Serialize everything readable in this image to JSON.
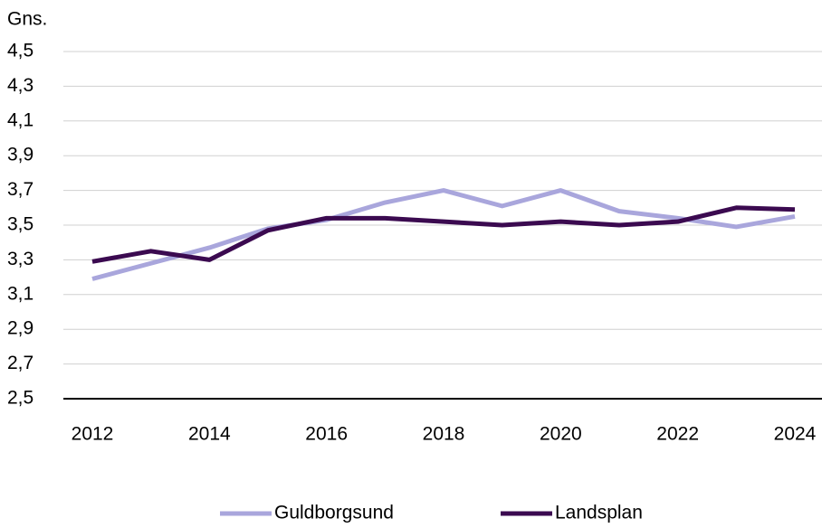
{
  "chart_data": {
    "type": "line",
    "y_label": "Gns.",
    "x": [
      2012,
      2013,
      2014,
      2015,
      2016,
      2017,
      2018,
      2019,
      2020,
      2021,
      2022,
      2023,
      2024
    ],
    "xlim": [
      2012,
      2024
    ],
    "xticks": [
      2012,
      2014,
      2016,
      2018,
      2020,
      2022,
      2024
    ],
    "ylim": [
      2.5,
      4.5
    ],
    "yticks": [
      {
        "value": 2.5,
        "label": "2,5"
      },
      {
        "value": 2.7,
        "label": "2,7"
      },
      {
        "value": 2.9,
        "label": "2,9"
      },
      {
        "value": 3.1,
        "label": "3,1"
      },
      {
        "value": 3.3,
        "label": "3,3"
      },
      {
        "value": 3.5,
        "label": "3,5"
      },
      {
        "value": 3.7,
        "label": "3,7"
      },
      {
        "value": 3.9,
        "label": "3,9"
      },
      {
        "value": 4.1,
        "label": "4,1"
      },
      {
        "value": 4.3,
        "label": "4,3"
      },
      {
        "value": 4.5,
        "label": "4,5"
      }
    ],
    "grid": true,
    "legend": "bottom",
    "series": [
      {
        "name": "Guldborgsund",
        "color": "#a9a6dc",
        "values": [
          3.19,
          3.28,
          3.37,
          3.48,
          3.53,
          3.63,
          3.7,
          3.61,
          3.7,
          3.58,
          3.54,
          3.49,
          3.55
        ]
      },
      {
        "name": "Landsplan",
        "color": "#3b0a50",
        "values": [
          3.29,
          3.35,
          3.3,
          3.47,
          3.54,
          3.54,
          3.52,
          3.5,
          3.52,
          3.5,
          3.52,
          3.6,
          3.59
        ]
      }
    ]
  }
}
